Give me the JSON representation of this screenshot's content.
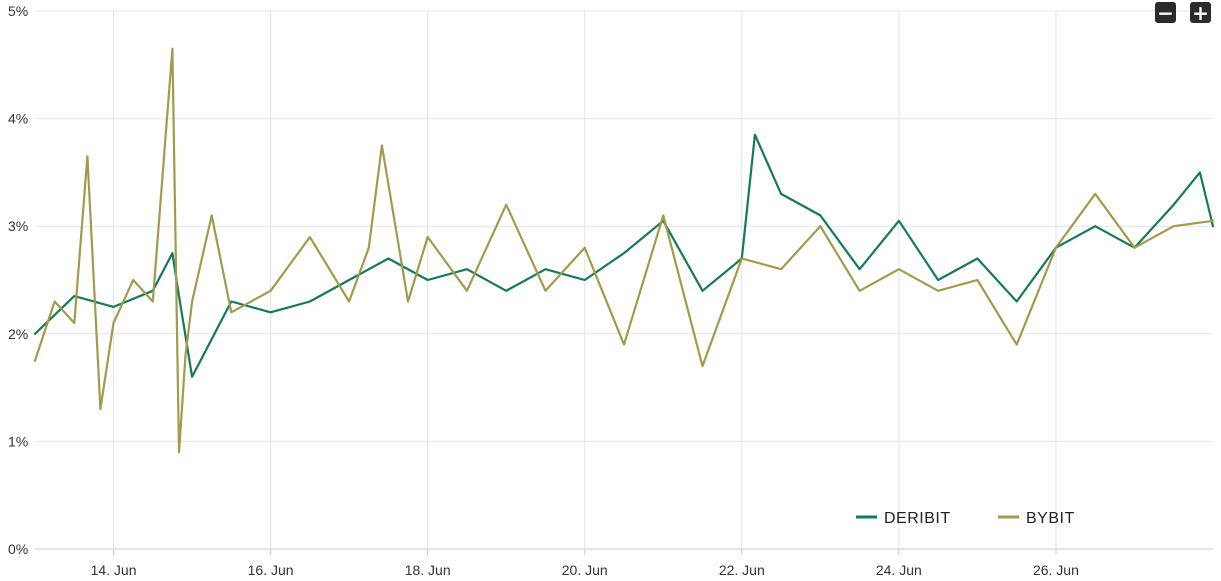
{
  "controls": {
    "zoom_out_label": "−",
    "zoom_in_label": "+"
  },
  "colors": {
    "deribit": "#147a58",
    "bybit": "#a39a4b",
    "grid": "#e3e3ec"
  },
  "chart_data": {
    "type": "line",
    "title": "",
    "xlabel": "",
    "ylabel": "",
    "ylim": [
      0,
      5
    ],
    "xlim": [
      "2023-06-13T00:00",
      "2023-06-28T00:00"
    ],
    "y_ticks": [
      {
        "value": 0,
        "label": "0%"
      },
      {
        "value": 1,
        "label": "1%"
      },
      {
        "value": 2,
        "label": "2%"
      },
      {
        "value": 3,
        "label": "3%"
      },
      {
        "value": 4,
        "label": "4%"
      },
      {
        "value": 5,
        "label": "5%"
      }
    ],
    "x_ticks": [
      {
        "value": "2023-06-14",
        "label": "14. Jun"
      },
      {
        "value": "2023-06-16",
        "label": "16. Jun"
      },
      {
        "value": "2023-06-18",
        "label": "18. Jun"
      },
      {
        "value": "2023-06-20",
        "label": "20. Jun"
      },
      {
        "value": "2023-06-22",
        "label": "22. Jun"
      },
      {
        "value": "2023-06-24",
        "label": "24. Jun"
      },
      {
        "value": "2023-06-26",
        "label": "26. Jun"
      }
    ],
    "grid": true,
    "legend_position": "bottom-right",
    "series": [
      {
        "name": "DERIBIT",
        "x": [
          "2023-06-13T00:00",
          "2023-06-13T12:00",
          "2023-06-14T00:00",
          "2023-06-14T12:00",
          "2023-06-14T18:00",
          "2023-06-14T20:00",
          "2023-06-15T00:00",
          "2023-06-15T12:00",
          "2023-06-16T00:00",
          "2023-06-16T12:00",
          "2023-06-17T00:00",
          "2023-06-17T12:00",
          "2023-06-18T00:00",
          "2023-06-18T12:00",
          "2023-06-19T00:00",
          "2023-06-19T12:00",
          "2023-06-20T00:00",
          "2023-06-20T12:00",
          "2023-06-21T00:00",
          "2023-06-21T12:00",
          "2023-06-22T00:00",
          "2023-06-22T04:00",
          "2023-06-22T12:00",
          "2023-06-23T00:00",
          "2023-06-23T12:00",
          "2023-06-24T00:00",
          "2023-06-24T12:00",
          "2023-06-25T00:00",
          "2023-06-25T12:00",
          "2023-06-26T00:00",
          "2023-06-26T12:00",
          "2023-06-27T00:00",
          "2023-06-27T12:00",
          "2023-06-27T20:00",
          "2023-06-28T00:00"
        ],
        "y": [
          2.0,
          2.35,
          2.25,
          2.4,
          2.75,
          2.35,
          1.6,
          2.3,
          2.2,
          2.3,
          2.5,
          2.7,
          2.5,
          2.6,
          2.4,
          2.6,
          2.5,
          2.75,
          3.05,
          2.4,
          2.7,
          3.85,
          3.3,
          3.1,
          2.6,
          3.05,
          2.5,
          2.7,
          2.3,
          2.8,
          3.0,
          2.8,
          3.2,
          3.5,
          3.0
        ]
      },
      {
        "name": "BYBIT",
        "x": [
          "2023-06-13T00:00",
          "2023-06-13T06:00",
          "2023-06-13T12:00",
          "2023-06-13T16:00",
          "2023-06-13T20:00",
          "2023-06-14T00:00",
          "2023-06-14T06:00",
          "2023-06-14T12:00",
          "2023-06-14T18:00",
          "2023-06-14T20:00",
          "2023-06-14T22:00",
          "2023-06-15T00:00",
          "2023-06-15T06:00",
          "2023-06-15T12:00",
          "2023-06-16T00:00",
          "2023-06-16T12:00",
          "2023-06-17T00:00",
          "2023-06-17T06:00",
          "2023-06-17T10:00",
          "2023-06-17T18:00",
          "2023-06-18T00:00",
          "2023-06-18T12:00",
          "2023-06-19T00:00",
          "2023-06-19T12:00",
          "2023-06-20T00:00",
          "2023-06-20T12:00",
          "2023-06-21T00:00",
          "2023-06-21T12:00",
          "2023-06-22T00:00",
          "2023-06-22T12:00",
          "2023-06-23T00:00",
          "2023-06-23T12:00",
          "2023-06-24T00:00",
          "2023-06-24T12:00",
          "2023-06-25T00:00",
          "2023-06-25T12:00",
          "2023-06-26T00:00",
          "2023-06-26T12:00",
          "2023-06-27T00:00",
          "2023-06-27T12:00",
          "2023-06-28T00:00"
        ],
        "y": [
          1.75,
          2.3,
          2.1,
          3.65,
          1.3,
          2.1,
          2.5,
          2.3,
          4.65,
          0.9,
          1.8,
          2.3,
          3.1,
          2.2,
          2.4,
          2.9,
          2.3,
          2.8,
          3.75,
          2.3,
          2.9,
          2.4,
          3.2,
          2.4,
          2.8,
          1.9,
          3.1,
          1.7,
          2.7,
          2.6,
          3.0,
          2.4,
          2.6,
          2.4,
          2.5,
          1.9,
          2.8,
          3.3,
          2.8,
          3.0,
          3.05
        ]
      }
    ]
  }
}
